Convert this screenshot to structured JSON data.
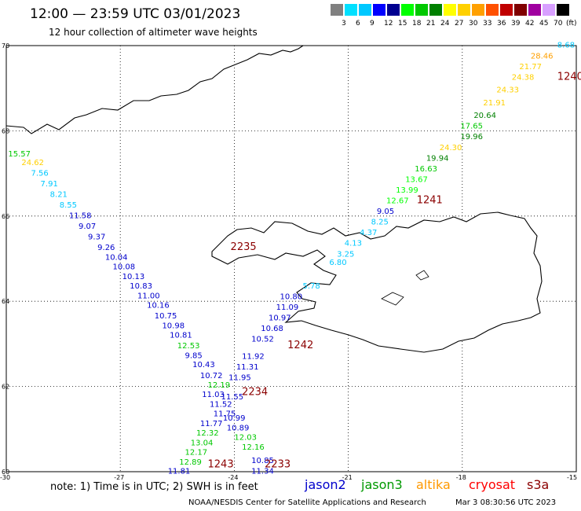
{
  "header": {
    "title": "12:00 — 23:59 UTC 03/01/2023",
    "subtitle": "12 hour collection of altimeter wave heights"
  },
  "legend": {
    "unit": "(ft)",
    "swatches": [
      {
        "label": "",
        "color": "#808080"
      },
      {
        "label": "3",
        "color": "#00e0ff"
      },
      {
        "label": "6",
        "color": "#00c8ff"
      },
      {
        "label": "9",
        "color": "#0000ff"
      },
      {
        "label": "12",
        "color": "#000090"
      },
      {
        "label": "15",
        "color": "#00ff00"
      },
      {
        "label": "18",
        "color": "#00c800"
      },
      {
        "label": "21",
        "color": "#008000"
      },
      {
        "label": "24",
        "color": "#ffff00"
      },
      {
        "label": "27",
        "color": "#ffd000"
      },
      {
        "label": "30",
        "color": "#ffa000"
      },
      {
        "label": "33",
        "color": "#ff5000"
      },
      {
        "label": "36",
        "color": "#c00000"
      },
      {
        "label": "39",
        "color": "#800000"
      },
      {
        "label": "42",
        "color": "#a000a0"
      },
      {
        "label": "45",
        "color": "#d8a0ff"
      },
      {
        "label": "70",
        "color": "#000000"
      }
    ]
  },
  "axes": {
    "lat_labels": [
      "70",
      "68",
      "66",
      "64",
      "62",
      "60"
    ],
    "lon_labels": [
      "-30",
      "-27",
      "-24",
      "-21",
      "-18",
      "-15"
    ]
  },
  "passes": {
    "colors": {
      "jason2": "#0000cc",
      "jason3": "#00a000",
      "altika": "#ff9900",
      "cryosat": "#ff0000",
      "s3a": "#8b0000",
      "time": "#8b0000"
    },
    "track_a_times": [
      {
        "text": "2235",
        "lon": -24.1,
        "lat": 65.2
      },
      {
        "text": "2234",
        "lon": -23.8,
        "lat": 61.8
      },
      {
        "text": "2233",
        "lon": -23.2,
        "lat": 60.1
      }
    ],
    "track_b_times": [
      {
        "text": "1240",
        "lon": -15.5,
        "lat": 69.2
      },
      {
        "text": "1241",
        "lon": -19.2,
        "lat": 66.3
      },
      {
        "text": "1242",
        "lon": -22.6,
        "lat": 62.9
      },
      {
        "text": "1243",
        "lon": -24.7,
        "lat": 60.1
      }
    ],
    "track_a": [
      {
        "v": "15.57",
        "c": "#00c800",
        "lon": -29.95,
        "lat": 67.4
      },
      {
        "v": "24.62",
        "c": "#ffd000",
        "lon": -29.6,
        "lat": 67.2
      },
      {
        "v": "7.56",
        "c": "#00c8ff",
        "lon": -29.35,
        "lat": 66.95
      },
      {
        "v": "7.91",
        "c": "#00c8ff",
        "lon": -29.1,
        "lat": 66.7
      },
      {
        "v": "8.21",
        "c": "#00c8ff",
        "lon": -28.85,
        "lat": 66.45
      },
      {
        "v": "8.55",
        "c": "#00c8ff",
        "lon": -28.6,
        "lat": 66.2
      },
      {
        "v": "11.58",
        "c": "#0000cc",
        "lon": -28.35,
        "lat": 65.95
      },
      {
        "v": "9.07",
        "c": "#0000cc",
        "lon": -28.1,
        "lat": 65.7
      },
      {
        "v": "9.37",
        "c": "#0000cc",
        "lon": -27.85,
        "lat": 65.45
      },
      {
        "v": "9.26",
        "c": "#0000cc",
        "lon": -27.6,
        "lat": 65.2
      },
      {
        "v": "10.04",
        "c": "#0000cc",
        "lon": -27.4,
        "lat": 64.97
      },
      {
        "v": "10.08",
        "c": "#0000cc",
        "lon": -27.2,
        "lat": 64.75
      },
      {
        "v": "10.13",
        "c": "#0000cc",
        "lon": -26.95,
        "lat": 64.52
      },
      {
        "v": "10.83",
        "c": "#0000cc",
        "lon": -26.75,
        "lat": 64.3
      },
      {
        "v": "11.00",
        "c": "#0000cc",
        "lon": -26.55,
        "lat": 64.07
      },
      {
        "v": "10.16",
        "c": "#0000cc",
        "lon": -26.3,
        "lat": 63.85
      },
      {
        "v": "10.75",
        "c": "#0000cc",
        "lon": -26.1,
        "lat": 63.6
      },
      {
        "v": "10.98",
        "c": "#0000cc",
        "lon": -25.9,
        "lat": 63.37
      },
      {
        "v": "10.81",
        "c": "#0000cc",
        "lon": -25.7,
        "lat": 63.15
      },
      {
        "v": "12.53",
        "c": "#00c800",
        "lon": -25.5,
        "lat": 62.9
      },
      {
        "v": "9.85",
        "c": "#0000cc",
        "lon": -25.3,
        "lat": 62.67
      },
      {
        "v": "10.43",
        "c": "#0000cc",
        "lon": -25.1,
        "lat": 62.45
      },
      {
        "v": "10.72",
        "c": "#0000cc",
        "lon": -24.9,
        "lat": 62.2
      },
      {
        "v": "12.19",
        "c": "#00c800",
        "lon": -24.7,
        "lat": 61.97
      },
      {
        "v": "11.03",
        "c": "#0000cc",
        "lon": -24.85,
        "lat": 61.75
      },
      {
        "v": "11.52",
        "c": "#0000cc",
        "lon": -24.65,
        "lat": 61.52
      },
      {
        "v": "11.75",
        "c": "#0000cc",
        "lon": -24.55,
        "lat": 61.3
      },
      {
        "v": "11.77",
        "c": "#0000cc",
        "lon": -24.9,
        "lat": 61.07
      },
      {
        "v": "12.32",
        "c": "#00c800",
        "lon": -25.0,
        "lat": 60.85
      },
      {
        "v": "13.04",
        "c": "#00c800",
        "lon": -25.15,
        "lat": 60.62
      },
      {
        "v": "12.17",
        "c": "#00c800",
        "lon": -25.3,
        "lat": 60.4
      },
      {
        "v": "12.89",
        "c": "#00c800",
        "lon": -25.45,
        "lat": 60.17
      },
      {
        "v": "11.81",
        "c": "#0000cc",
        "lon": -25.75,
        "lat": 59.95
      }
    ],
    "track_b": [
      {
        "v": "8.68",
        "c": "#00c8ff",
        "lon": -15.5,
        "lat": 69.95
      },
      {
        "v": "28.46",
        "c": "#ffa000",
        "lon": -16.2,
        "lat": 69.7
      },
      {
        "v": "21.77",
        "c": "#ffd000",
        "lon": -16.5,
        "lat": 69.45
      },
      {
        "v": "24.38",
        "c": "#ffd000",
        "lon": -16.7,
        "lat": 69.2
      },
      {
        "v": "24.33",
        "c": "#ffd000",
        "lon": -17.1,
        "lat": 68.9
      },
      {
        "v": "21.91",
        "c": "#ffd000",
        "lon": -17.45,
        "lat": 68.6
      },
      {
        "v": "20.64",
        "c": "#008000",
        "lon": -17.7,
        "lat": 68.3
      },
      {
        "v": "17.65",
        "c": "#00c800",
        "lon": -18.05,
        "lat": 68.05
      },
      {
        "v": "19.96",
        "c": "#008000",
        "lon": -18.05,
        "lat": 67.8
      },
      {
        "v": "24.30",
        "c": "#ffd000",
        "lon": -18.6,
        "lat": 67.55
      },
      {
        "v": "19.94",
        "c": "#008000",
        "lon": -18.95,
        "lat": 67.3
      },
      {
        "v": "16.63",
        "c": "#00c800",
        "lon": -19.25,
        "lat": 67.05
      },
      {
        "v": "13.67",
        "c": "#00ff00",
        "lon": -19.5,
        "lat": 66.8
      },
      {
        "v": "13.99",
        "c": "#00ff00",
        "lon": -19.75,
        "lat": 66.55
      },
      {
        "v": "12.67",
        "c": "#00ff00",
        "lon": -20.0,
        "lat": 66.3
      },
      {
        "v": "9.05",
        "c": "#0000cc",
        "lon": -20.25,
        "lat": 66.05
      },
      {
        "v": "8.25",
        "c": "#00c8ff",
        "lon": -20.4,
        "lat": 65.8
      },
      {
        "v": "4.37",
        "c": "#00c8ff",
        "lon": -20.7,
        "lat": 65.55
      },
      {
        "v": "4.13",
        "c": "#00c8ff",
        "lon": -21.1,
        "lat": 65.3
      },
      {
        "v": "3.25",
        "c": "#00c8ff",
        "lon": -21.3,
        "lat": 65.05
      },
      {
        "v": "6.80",
        "c": "#00c8ff",
        "lon": -21.5,
        "lat": 64.85
      },
      {
        "v": "5.78",
        "c": "#00c8ff",
        "lon": -22.2,
        "lat": 64.3
      },
      {
        "v": "10.80",
        "c": "#0000cc",
        "lon": -22.8,
        "lat": 64.05
      },
      {
        "v": "11.09",
        "c": "#0000cc",
        "lon": -22.9,
        "lat": 63.8
      },
      {
        "v": "10.97",
        "c": "#0000cc",
        "lon": -23.1,
        "lat": 63.55
      },
      {
        "v": "10.68",
        "c": "#0000cc",
        "lon": -23.3,
        "lat": 63.3
      },
      {
        "v": "10.52",
        "c": "#0000cc",
        "lon": -23.55,
        "lat": 63.05
      },
      {
        "v": "11.92",
        "c": "#0000cc",
        "lon": -23.8,
        "lat": 62.65
      },
      {
        "v": "11.31",
        "c": "#0000cc",
        "lon": -23.95,
        "lat": 62.4
      },
      {
        "v": "11.95",
        "c": "#0000cc",
        "lon": -24.15,
        "lat": 62.15
      },
      {
        "v": "11.55",
        "c": "#0000cc",
        "lon": -24.35,
        "lat": 61.7
      },
      {
        "v": "10.99",
        "c": "#0000cc",
        "lon": -24.3,
        "lat": 61.2
      },
      {
        "v": "10.89",
        "c": "#0000cc",
        "lon": -24.2,
        "lat": 60.97
      },
      {
        "v": "12.03",
        "c": "#00c800",
        "lon": -24.0,
        "lat": 60.75
      },
      {
        "v": "12.16",
        "c": "#00c800",
        "lon": -23.8,
        "lat": 60.52
      },
      {
        "v": "10.85",
        "c": "#0000cc",
        "lon": -23.55,
        "lat": 60.2
      },
      {
        "v": "11.34",
        "c": "#0000cc",
        "lon": -23.55,
        "lat": 59.95
      }
    ]
  },
  "footer": {
    "note": "note:  1) Time is in UTC;  2) SWH is in feet",
    "sats": [
      {
        "name": "jason2",
        "color": "#0000cc"
      },
      {
        "name": "jason3",
        "color": "#009900"
      },
      {
        "name": "altika",
        "color": "#ff9900"
      },
      {
        "name": "cryosat",
        "color": "#ff0000"
      },
      {
        "name": "s3a",
        "color": "#8b0000"
      }
    ],
    "credit": "NOAA/NESDIS Center for Satellite Applications and Research",
    "timestamp": "Mar  3 08:30:56 UTC 2023"
  }
}
